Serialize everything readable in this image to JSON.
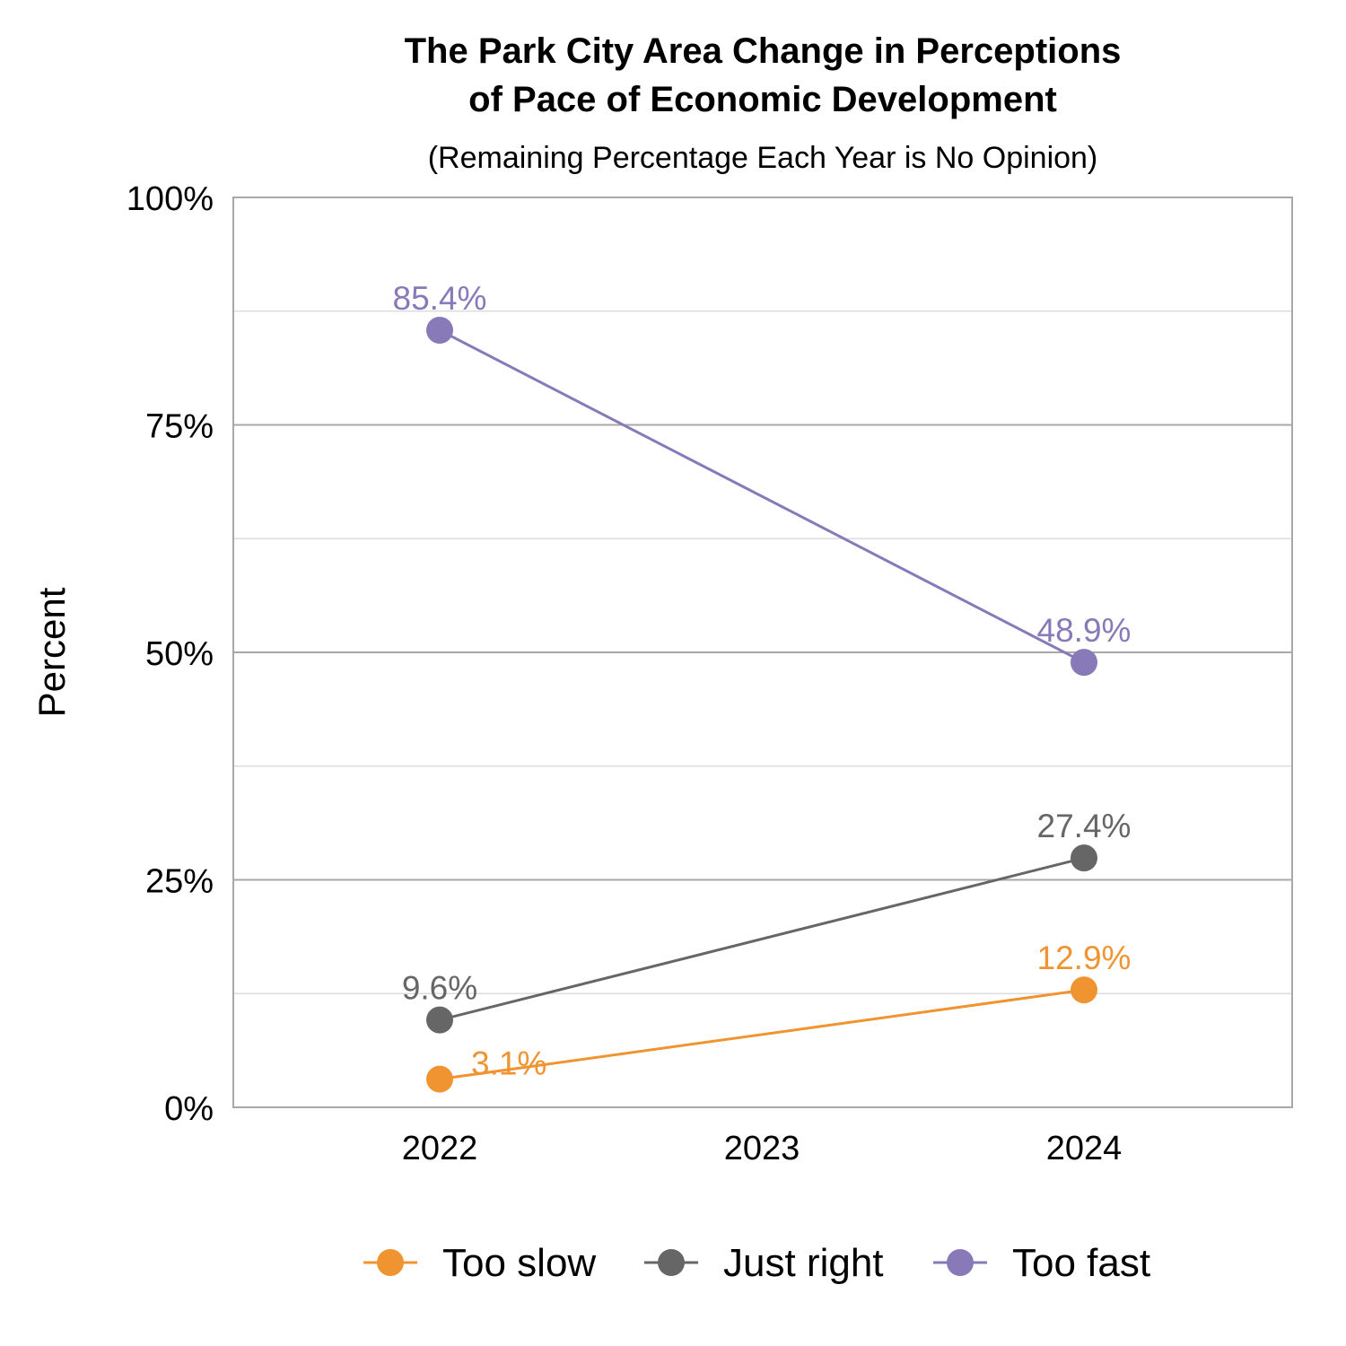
{
  "chart_data": {
    "type": "line",
    "title": "The Park City Area Change in Perceptions\nof Pace of Economic Development",
    "subtitle": "(Remaining Percentage Each Year is No Opinion)",
    "xlabel": "",
    "ylabel": "Percent",
    "categories": [
      "2022",
      "2023",
      "2024"
    ],
    "ylim": [
      0,
      100
    ],
    "yticks": [
      0,
      25,
      50,
      75,
      100
    ],
    "ytick_labels": [
      "0%",
      "25%",
      "50%",
      "75%",
      "100%"
    ],
    "grid": true,
    "legend_position": "bottom",
    "series": [
      {
        "name": "Too slow",
        "color": "#EF9430",
        "x": [
          "2022",
          "2024"
        ],
        "values": [
          3.1,
          12.9
        ],
        "labels": [
          "3.1%",
          "12.9%"
        ]
      },
      {
        "name": "Just right",
        "color": "#666666",
        "x": [
          "2022",
          "2024"
        ],
        "values": [
          9.6,
          27.4
        ],
        "labels": [
          "9.6%",
          "27.4%"
        ]
      },
      {
        "name": "Too fast",
        "color": "#8879B8",
        "x": [
          "2022",
          "2024"
        ],
        "values": [
          85.4,
          48.9
        ],
        "labels": [
          "85.4%",
          "48.9%"
        ]
      }
    ]
  }
}
